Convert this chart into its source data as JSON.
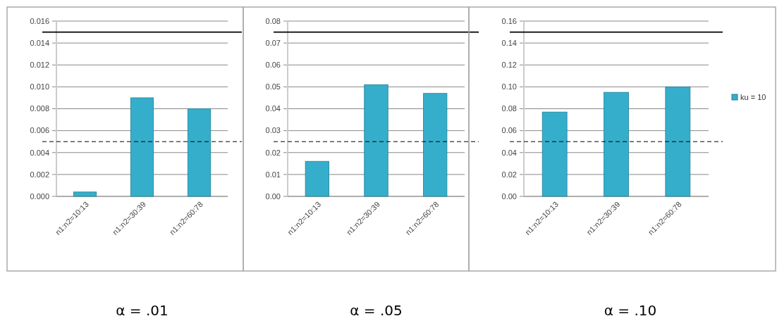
{
  "chart_data": [
    {
      "type": "bar",
      "categories": [
        "n1:n2=10:13",
        "n1:n2=30:39",
        "n1:n2=60:78"
      ],
      "series": [
        {
          "color": "#35aecb",
          "values": [
            0.0004,
            0.009,
            0.008
          ]
        }
      ],
      "ylim": [
        0,
        0.016
      ],
      "yticks": [
        {
          "value": 0,
          "label": "0.000"
        },
        {
          "value": 0.002,
          "label": "0.002"
        },
        {
          "value": 0.004,
          "label": "0.004"
        },
        {
          "value": 0.006,
          "label": "0.006"
        },
        {
          "value": 0.008,
          "label": "0.008"
        },
        {
          "value": 0.01,
          "label": "0.010"
        },
        {
          "value": 0.012,
          "label": "0.012"
        },
        {
          "value": 0.014,
          "label": "0.014"
        },
        {
          "value": 0.016,
          "label": "0.016"
        }
      ],
      "grid": "y",
      "ref_lines": [
        {
          "axis": "y",
          "value": 0.015,
          "color": "#000000",
          "line_style": "solid"
        },
        {
          "axis": "y",
          "value": 0.005,
          "color": "#000000",
          "line_style": "dashed"
        }
      ],
      "annotations": [
        "α = .01"
      ]
    },
    {
      "type": "bar",
      "categories": [
        "n1:n2=10:13",
        "n1:n2=30:39",
        "n1:n2=60:78"
      ],
      "series": [
        {
          "color": "#35aecb",
          "values": [
            0.016,
            0.051,
            0.047
          ]
        }
      ],
      "ylim": [
        0,
        0.08
      ],
      "yticks": [
        {
          "value": 0,
          "label": "0.00"
        },
        {
          "value": 0.01,
          "label": "0.01"
        },
        {
          "value": 0.02,
          "label": "0.02"
        },
        {
          "value": 0.03,
          "label": "0.03"
        },
        {
          "value": 0.04,
          "label": "0.04"
        },
        {
          "value": 0.05,
          "label": "0.05"
        },
        {
          "value": 0.06,
          "label": "0.06"
        },
        {
          "value": 0.07,
          "label": "0.07"
        },
        {
          "value": 0.08,
          "label": "0.08"
        }
      ],
      "grid": "y",
      "ref_lines": [
        {
          "axis": "y",
          "value": 0.075,
          "color": "#000000",
          "line_style": "solid"
        },
        {
          "axis": "y",
          "value": 0.025,
          "color": "#000000",
          "line_style": "dashed"
        }
      ],
      "annotations": [
        "α = .05"
      ]
    },
    {
      "type": "bar",
      "categories": [
        "n1:n2=10:13",
        "n1:n2=30:39",
        "n1:n2=60:78"
      ],
      "series": [
        {
          "name": "ku = 10",
          "color": "#35aecb",
          "values": [
            0.077,
            0.095,
            0.1
          ]
        }
      ],
      "ylim": [
        0,
        0.16
      ],
      "yticks": [
        {
          "value": 0,
          "label": "0.00"
        },
        {
          "value": 0.02,
          "label": "0.02"
        },
        {
          "value": 0.04,
          "label": "0.04"
        },
        {
          "value": 0.06,
          "label": "0.06"
        },
        {
          "value": 0.08,
          "label": "0.08"
        },
        {
          "value": 0.1,
          "label": "0.10"
        },
        {
          "value": 0.12,
          "label": "0.12"
        },
        {
          "value": 0.14,
          "label": "0.14"
        },
        {
          "value": 0.16,
          "label": "0.16"
        }
      ],
      "grid": "y",
      "legend": "right",
      "ref_lines": [
        {
          "axis": "y",
          "value": 0.15,
          "color": "#000000",
          "line_style": "solid"
        },
        {
          "axis": "y",
          "value": 0.05,
          "color": "#000000",
          "line_style": "dashed"
        }
      ],
      "annotations": [
        "α = .10"
      ]
    }
  ]
}
